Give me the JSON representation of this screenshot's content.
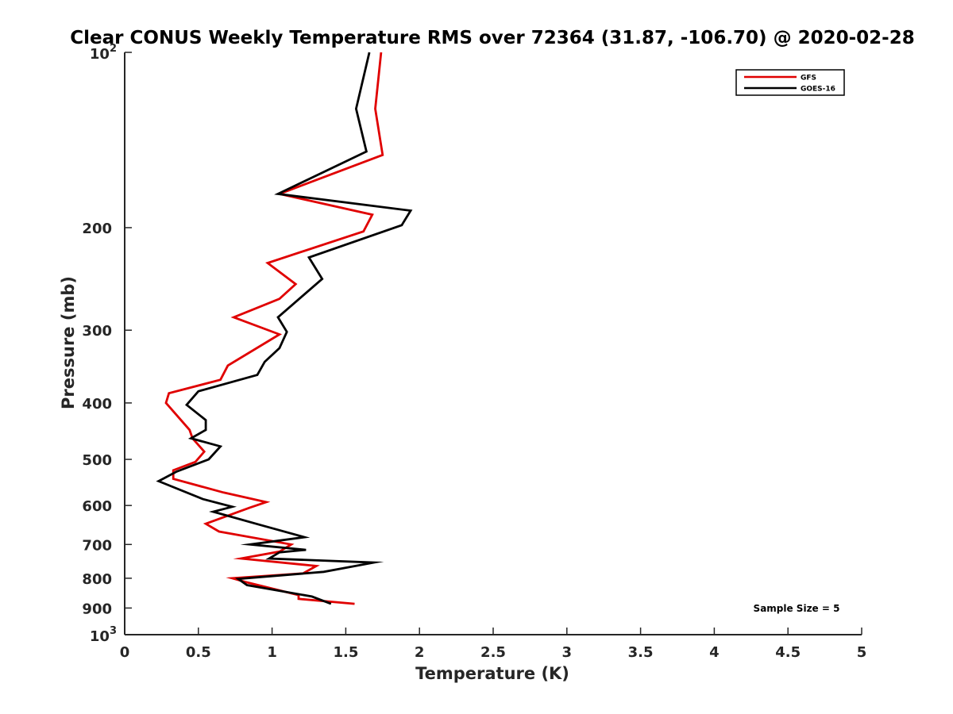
{
  "chart_data": {
    "type": "line",
    "title": "Clear CONUS Weekly Temperature RMS over 72364 (31.87, -106.70) @ 2020-02-28",
    "xlabel": "Temperature (K)",
    "ylabel": "Pressure (mb)",
    "xlim": [
      0,
      5
    ],
    "ylim": [
      100,
      1000
    ],
    "y_scale": "log",
    "y_reversed": true,
    "grid": false,
    "legend_position": "top-right",
    "x_ticks": [
      "0",
      "0.5",
      "1",
      "1.5",
      "2",
      "2.5",
      "3",
      "3.5",
      "4",
      "4.5",
      "5"
    ],
    "y_ticks": [
      {
        "value": 100,
        "base": "10",
        "exp": "2"
      },
      {
        "value": 200,
        "label": "200"
      },
      {
        "value": 300,
        "label": "300"
      },
      {
        "value": 400,
        "label": "400"
      },
      {
        "value": 500,
        "label": "500"
      },
      {
        "value": 600,
        "label": "600"
      },
      {
        "value": 700,
        "label": "700"
      },
      {
        "value": 800,
        "label": "800"
      },
      {
        "value": 900,
        "label": "900"
      },
      {
        "value": 1000,
        "base": "10",
        "exp": "3"
      }
    ],
    "annotation": "Sample Size = 5",
    "series": [
      {
        "name": "GFS",
        "color": "#e00000",
        "points": [
          [
            1.74,
            100
          ],
          [
            1.7,
            125
          ],
          [
            1.75,
            150
          ],
          [
            1.05,
            175
          ],
          [
            1.68,
            190
          ],
          [
            1.62,
            203
          ],
          [
            0.97,
            230
          ],
          [
            1.16,
            250
          ],
          [
            1.05,
            265
          ],
          [
            0.74,
            285
          ],
          [
            1.05,
            305
          ],
          [
            0.7,
            345
          ],
          [
            0.65,
            365
          ],
          [
            0.3,
            385
          ],
          [
            0.28,
            400
          ],
          [
            0.44,
            445
          ],
          [
            0.46,
            460
          ],
          [
            0.54,
            485
          ],
          [
            0.48,
            505
          ],
          [
            0.33,
            522
          ],
          [
            0.33,
            540
          ],
          [
            0.67,
            570
          ],
          [
            0.96,
            592
          ],
          [
            0.85,
            605
          ],
          [
            0.55,
            645
          ],
          [
            0.64,
            665
          ],
          [
            1.13,
            700
          ],
          [
            1.05,
            720
          ],
          [
            0.79,
            740
          ],
          [
            1.3,
            762
          ],
          [
            1.21,
            785
          ],
          [
            0.73,
            800
          ],
          [
            0.82,
            812
          ],
          [
            1.18,
            855
          ],
          [
            1.18,
            868
          ],
          [
            1.56,
            885
          ]
        ]
      },
      {
        "name": "GOES-16",
        "color": "#000000",
        "points": [
          [
            1.66,
            100
          ],
          [
            1.57,
            125
          ],
          [
            1.64,
            148
          ],
          [
            1.04,
            175
          ],
          [
            1.94,
            187
          ],
          [
            1.88,
            198
          ],
          [
            1.25,
            225
          ],
          [
            1.34,
            245
          ],
          [
            1.04,
            285
          ],
          [
            1.1,
            302
          ],
          [
            1.05,
            322
          ],
          [
            0.95,
            340
          ],
          [
            0.9,
            358
          ],
          [
            0.5,
            382
          ],
          [
            0.42,
            403
          ],
          [
            0.55,
            428
          ],
          [
            0.55,
            445
          ],
          [
            0.45,
            460
          ],
          [
            0.65,
            475
          ],
          [
            0.57,
            500
          ],
          [
            0.35,
            525
          ],
          [
            0.23,
            545
          ],
          [
            0.53,
            585
          ],
          [
            0.73,
            603
          ],
          [
            0.6,
            615
          ],
          [
            0.92,
            648
          ],
          [
            1.22,
            680
          ],
          [
            0.85,
            700
          ],
          [
            1.23,
            715
          ],
          [
            1.05,
            722
          ],
          [
            0.98,
            740
          ],
          [
            1.69,
            752
          ],
          [
            1.35,
            780
          ],
          [
            0.77,
            802
          ],
          [
            0.83,
            822
          ],
          [
            1.27,
            860
          ],
          [
            1.4,
            885
          ]
        ]
      }
    ]
  }
}
